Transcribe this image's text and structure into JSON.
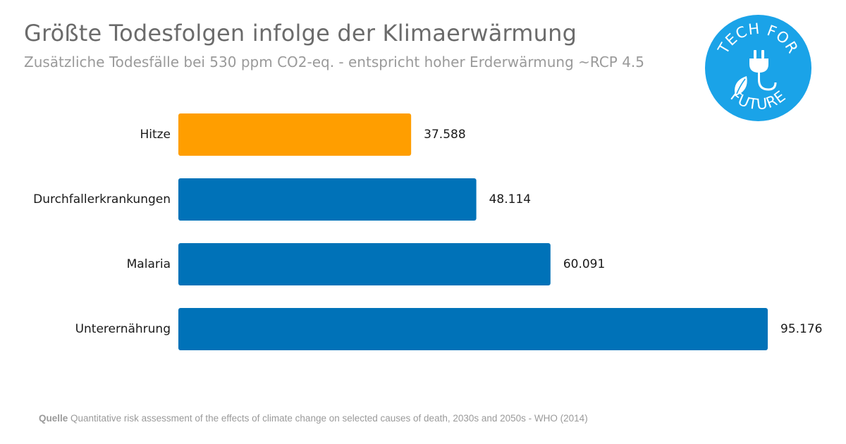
{
  "header": {
    "title": "Größte Todesfolgen infolge der Klimaerwärmung",
    "subtitle": "Zusätzliche Todesfälle bei 530 ppm CO2-eq. - entspricht hoher Erderwärmung ~RCP 4.5"
  },
  "logo": {
    "text_top": "TECH FOR",
    "text_bottom": "FUTURE",
    "color": "#1aa3e8"
  },
  "chart_data": {
    "type": "bar",
    "orientation": "horizontal",
    "title": "Größte Todesfolgen infolge der Klimaerwärmung",
    "subtitle": "Zusätzliche Todesfälle bei 530 ppm CO2-eq. - entspricht hoher Erderwärmung ~RCP 4.5",
    "categories": [
      "Hitze",
      "Durchfallerkrankungen",
      "Malaria",
      "Unterernährung"
    ],
    "values": [
      37588,
      48114,
      60091,
      95176
    ],
    "value_labels": [
      "37.588",
      "48.114",
      "60.091",
      "95.176"
    ],
    "colors": [
      "#ff9e00",
      "#0072b8",
      "#0072b8",
      "#0072b8"
    ],
    "xlim": [
      0,
      95176
    ],
    "grid": false,
    "xlabel": "",
    "ylabel": ""
  },
  "source": {
    "label": "Quelle",
    "text": "Quantitative risk assessment of the effects of climate change on selected causes of death, 2030s and 2050s - WHO (2014)"
  }
}
